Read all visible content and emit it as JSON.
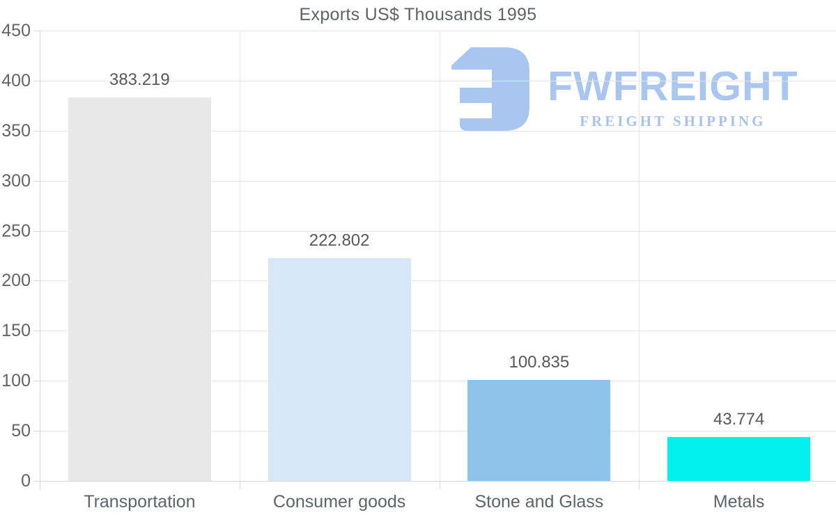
{
  "chart_data": {
    "type": "bar",
    "title": "Exports US$ Thousands 1995",
    "categories": [
      "Transportation",
      "Consumer goods",
      "Stone and Glass",
      "Metals"
    ],
    "values": [
      383.219,
      222.802,
      100.835,
      43.774
    ],
    "value_labels": [
      "383.219",
      "222.802",
      "100.835",
      "43.774"
    ],
    "bar_colors": [
      "#e8e8e8",
      "#d6e7f8",
      "#90c3e9",
      "#04f0ee"
    ],
    "xlabel": "",
    "ylabel": "",
    "ylim": [
      0,
      450
    ],
    "ytick_step": 50,
    "ytick_labels": [
      "0",
      "50",
      "100",
      "150",
      "200",
      "250",
      "300",
      "350",
      "400",
      "450"
    ],
    "grid": true,
    "legend": false,
    "value_labels_position": "above-bars"
  },
  "logo": {
    "brand": "FWFREIGHT",
    "tagline": "FREIGHT SHIPPING",
    "icon": "freight-logo-icon"
  },
  "colors": {
    "title": "#5f6368",
    "tick_label": "#636363",
    "value_label": "#57585a",
    "category_label": "#5f6368",
    "gridline": "#e7e7e7",
    "axis": "#d8d8d8",
    "background": "#ffffff",
    "logo": "#a9c6f1",
    "tagline": "#a9c2ec"
  }
}
